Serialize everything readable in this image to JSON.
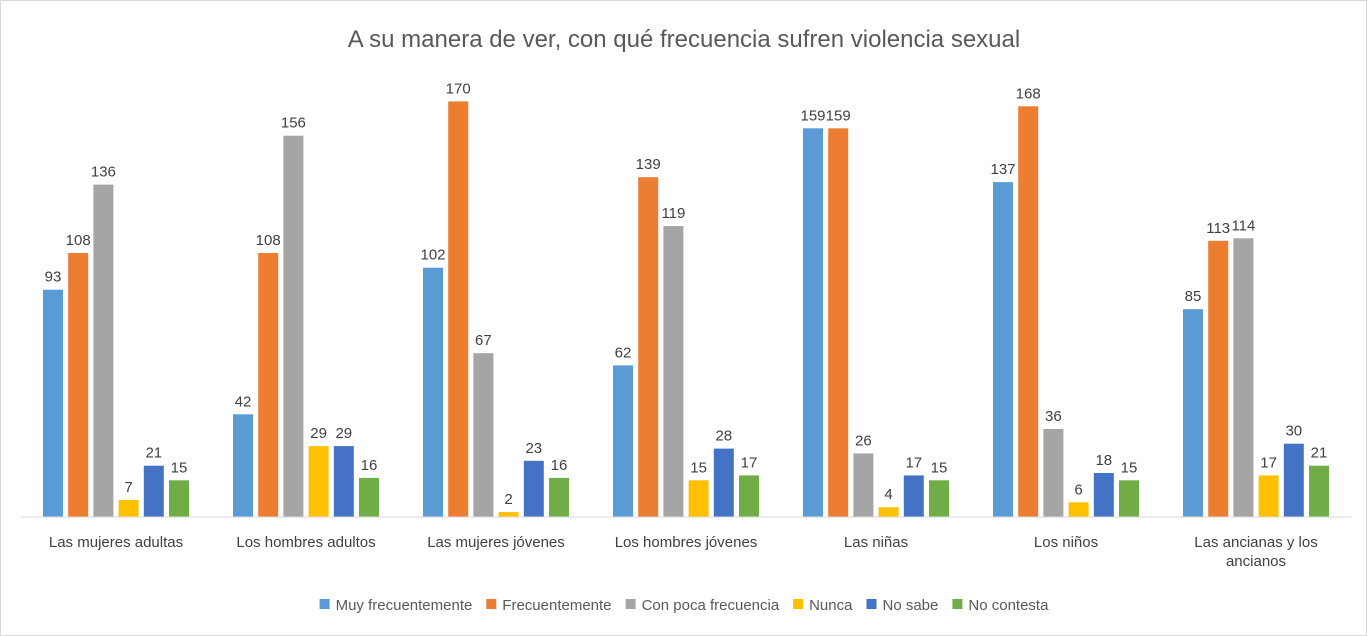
{
  "chart_data": {
    "type": "bar",
    "title": "A su manera de ver, con qué frecuencia sufren violencia sexual",
    "xlabel": "",
    "ylabel": "",
    "ylim": [
      0,
      180
    ],
    "grid": false,
    "legend": "bottom",
    "categories": [
      [
        "Las mujeres adultas"
      ],
      [
        "Los hombres adultos"
      ],
      [
        "Las mujeres jóvenes"
      ],
      [
        "Los hombres jóvenes"
      ],
      [
        "Las niñas"
      ],
      [
        "Los niños"
      ],
      [
        "Las ancianas y los",
        "ancianos"
      ]
    ],
    "series": [
      {
        "name": "Muy frecuentemente",
        "color": "#5b9bd5",
        "values": [
          93,
          42,
          102,
          62,
          159,
          137,
          85
        ]
      },
      {
        "name": "Frecuentemente",
        "color": "#ed7d31",
        "values": [
          108,
          108,
          170,
          139,
          159,
          168,
          113
        ]
      },
      {
        "name": "Con poca frecuencia",
        "color": "#a5a5a5",
        "values": [
          136,
          156,
          67,
          119,
          26,
          36,
          114
        ]
      },
      {
        "name": "Nunca",
        "color": "#ffc000",
        "values": [
          7,
          29,
          2,
          15,
          4,
          6,
          17
        ]
      },
      {
        "name": "No sabe",
        "color": "#4472c4",
        "values": [
          21,
          29,
          23,
          28,
          17,
          18,
          30
        ]
      },
      {
        "name": "No contesta",
        "color": "#70ad47",
        "values": [
          15,
          16,
          16,
          17,
          15,
          15,
          21
        ]
      }
    ]
  }
}
